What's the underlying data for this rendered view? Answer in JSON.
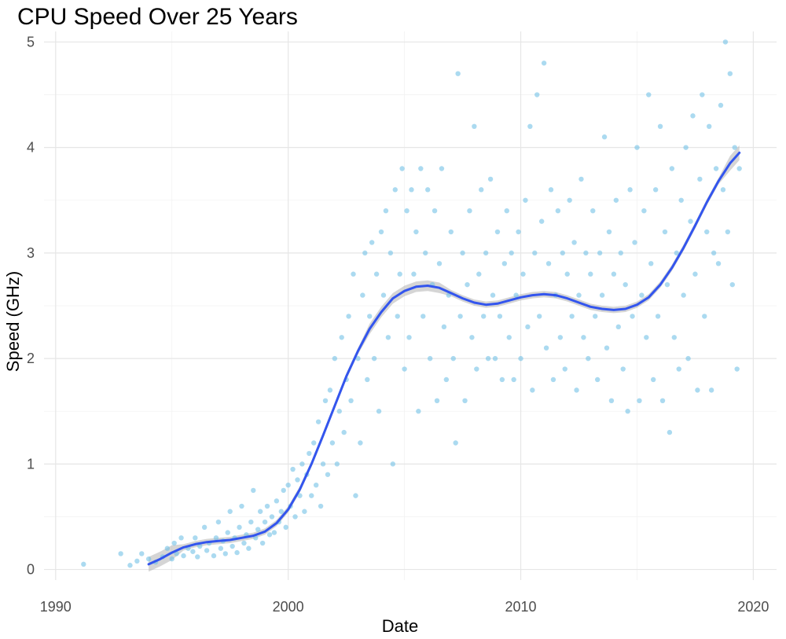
{
  "chart_data": {
    "type": "scatter",
    "title": "CPU Speed Over 25 Years",
    "xlabel": "Date",
    "ylabel": "Speed (GHz)",
    "xlim": [
      1989.5,
      2021.0
    ],
    "ylim": [
      -0.1,
      5.1
    ],
    "x_ticks": [
      1990,
      2000,
      2010,
      2020
    ],
    "x_tick_labels": [
      "1990",
      "2000",
      "2010",
      "2020"
    ],
    "y_ticks": [
      0,
      1,
      2,
      3,
      4,
      5
    ],
    "y_tick_labels": [
      "0",
      "1",
      "2",
      "3",
      "4",
      "5"
    ],
    "grid": true,
    "legend": "none",
    "colors": {
      "points": "#73c2e6",
      "trend": "#3355ee",
      "band": "#b3b3b3"
    },
    "series": [
      {
        "kind": "scatter-points",
        "points": [
          [
            1991.2,
            0.05
          ],
          [
            1992.8,
            0.15
          ],
          [
            1993.2,
            0.04
          ],
          [
            1993.5,
            0.08
          ],
          [
            1993.7,
            0.15
          ],
          [
            1994.0,
            0.1
          ],
          [
            1994.3,
            0.07
          ],
          [
            1994.6,
            0.12
          ],
          [
            1994.8,
            0.2
          ],
          [
            1995.0,
            0.1
          ],
          [
            1995.1,
            0.25
          ],
          [
            1995.2,
            0.15
          ],
          [
            1995.4,
            0.3
          ],
          [
            1995.5,
            0.13
          ],
          [
            1995.7,
            0.2
          ],
          [
            1995.9,
            0.17
          ],
          [
            1996.0,
            0.3
          ],
          [
            1996.1,
            0.12
          ],
          [
            1996.2,
            0.22
          ],
          [
            1996.4,
            0.4
          ],
          [
            1996.5,
            0.18
          ],
          [
            1996.6,
            0.25
          ],
          [
            1996.8,
            0.13
          ],
          [
            1996.9,
            0.3
          ],
          [
            1997.0,
            0.45
          ],
          [
            1997.1,
            0.2
          ],
          [
            1997.2,
            0.27
          ],
          [
            1997.3,
            0.15
          ],
          [
            1997.4,
            0.35
          ],
          [
            1997.5,
            0.55
          ],
          [
            1997.6,
            0.22
          ],
          [
            1997.7,
            0.3
          ],
          [
            1997.8,
            0.16
          ],
          [
            1997.9,
            0.4
          ],
          [
            1998.0,
            0.6
          ],
          [
            1998.1,
            0.25
          ],
          [
            1998.2,
            0.33
          ],
          [
            1998.3,
            0.2
          ],
          [
            1998.4,
            0.45
          ],
          [
            1998.5,
            0.75
          ],
          [
            1998.6,
            0.3
          ],
          [
            1998.7,
            0.38
          ],
          [
            1998.8,
            0.55
          ],
          [
            1998.9,
            0.25
          ],
          [
            1999.0,
            0.45
          ],
          [
            1999.1,
            0.6
          ],
          [
            1999.2,
            0.33
          ],
          [
            1999.3,
            0.5
          ],
          [
            1999.4,
            0.35
          ],
          [
            1999.5,
            0.65
          ],
          [
            1999.6,
            0.45
          ],
          [
            1999.7,
            0.55
          ],
          [
            1999.8,
            0.75
          ],
          [
            1999.9,
            0.4
          ],
          [
            2000.0,
            0.8
          ],
          [
            2000.1,
            0.6
          ],
          [
            2000.2,
            0.95
          ],
          [
            2000.3,
            0.5
          ],
          [
            2000.4,
            0.85
          ],
          [
            2000.5,
            0.7
          ],
          [
            2000.6,
            1.0
          ],
          [
            2000.7,
            0.55
          ],
          [
            2000.8,
            0.9
          ],
          [
            2000.9,
            1.1
          ],
          [
            2001.0,
            0.7
          ],
          [
            2001.1,
            1.2
          ],
          [
            2001.2,
            0.8
          ],
          [
            2001.3,
            1.4
          ],
          [
            2001.4,
            0.6
          ],
          [
            2001.5,
            1.0
          ],
          [
            2001.6,
            1.6
          ],
          [
            2001.7,
            0.9
          ],
          [
            2001.8,
            1.7
          ],
          [
            2001.9,
            1.2
          ],
          [
            2002.0,
            2.0
          ],
          [
            2002.1,
            1.0
          ],
          [
            2002.2,
            1.5
          ],
          [
            2002.3,
            2.2
          ],
          [
            2002.4,
            1.3
          ],
          [
            2002.5,
            1.8
          ],
          [
            2002.6,
            2.4
          ],
          [
            2002.7,
            1.6
          ],
          [
            2002.8,
            2.8
          ],
          [
            2002.9,
            0.7
          ],
          [
            2003.0,
            2.0
          ],
          [
            2003.1,
            1.2
          ],
          [
            2003.2,
            2.6
          ],
          [
            2003.3,
            3.0
          ],
          [
            2003.4,
            1.8
          ],
          [
            2003.5,
            2.4
          ],
          [
            2003.6,
            3.1
          ],
          [
            2003.7,
            2.0
          ],
          [
            2003.8,
            2.8
          ],
          [
            2003.9,
            1.5
          ],
          [
            2004.0,
            3.2
          ],
          [
            2004.1,
            2.6
          ],
          [
            2004.2,
            3.4
          ],
          [
            2004.3,
            2.2
          ],
          [
            2004.4,
            3.0
          ],
          [
            2004.5,
            1.0
          ],
          [
            2004.6,
            3.6
          ],
          [
            2004.7,
            2.4
          ],
          [
            2004.8,
            2.8
          ],
          [
            2004.9,
            3.8
          ],
          [
            2005.0,
            1.9
          ],
          [
            2005.1,
            3.4
          ],
          [
            2005.2,
            2.2
          ],
          [
            2005.3,
            3.6
          ],
          [
            2005.4,
            2.8
          ],
          [
            2005.5,
            3.2
          ],
          [
            2005.6,
            1.5
          ],
          [
            2005.7,
            3.8
          ],
          [
            2005.8,
            2.4
          ],
          [
            2005.9,
            3.0
          ],
          [
            2006.0,
            3.6
          ],
          [
            2006.1,
            2.0
          ],
          [
            2006.2,
            2.7
          ],
          [
            2006.3,
            3.4
          ],
          [
            2006.4,
            1.6
          ],
          [
            2006.5,
            2.9
          ],
          [
            2006.6,
            3.8
          ],
          [
            2006.7,
            2.3
          ],
          [
            2006.8,
            1.8
          ],
          [
            2006.9,
            2.6
          ],
          [
            2007.0,
            3.2
          ],
          [
            2007.1,
            2.0
          ],
          [
            2007.2,
            1.2
          ],
          [
            2007.3,
            4.7
          ],
          [
            2007.4,
            2.4
          ],
          [
            2007.5,
            3.0
          ],
          [
            2007.6,
            1.6
          ],
          [
            2007.7,
            2.7
          ],
          [
            2007.8,
            3.4
          ],
          [
            2007.9,
            2.2
          ],
          [
            2008.0,
            4.2
          ],
          [
            2008.1,
            1.9
          ],
          [
            2008.2,
            2.8
          ],
          [
            2008.3,
            3.6
          ],
          [
            2008.4,
            2.4
          ],
          [
            2008.5,
            3.0
          ],
          [
            2008.6,
            2.0
          ],
          [
            2008.7,
            3.7
          ],
          [
            2008.8,
            2.6
          ],
          [
            2008.9,
            2.0
          ],
          [
            2009.0,
            3.2
          ],
          [
            2009.1,
            2.4
          ],
          [
            2009.2,
            1.8
          ],
          [
            2009.3,
            2.9
          ],
          [
            2009.4,
            3.4
          ],
          [
            2009.5,
            2.2
          ],
          [
            2009.6,
            3.0
          ],
          [
            2009.7,
            1.8
          ],
          [
            2009.8,
            2.6
          ],
          [
            2009.9,
            3.2
          ],
          [
            2010.0,
            2.0
          ],
          [
            2010.1,
            2.8
          ],
          [
            2010.2,
            3.5
          ],
          [
            2010.3,
            2.3
          ],
          [
            2010.4,
            4.2
          ],
          [
            2010.5,
            1.7
          ],
          [
            2010.6,
            3.0
          ],
          [
            2010.7,
            4.5
          ],
          [
            2010.8,
            2.4
          ],
          [
            2010.9,
            3.3
          ],
          [
            2011.0,
            4.8
          ],
          [
            2011.1,
            2.1
          ],
          [
            2011.2,
            2.9
          ],
          [
            2011.3,
            3.6
          ],
          [
            2011.4,
            1.8
          ],
          [
            2011.5,
            2.6
          ],
          [
            2011.6,
            3.4
          ],
          [
            2011.7,
            2.2
          ],
          [
            2011.8,
            3.0
          ],
          [
            2011.9,
            1.9
          ],
          [
            2012.0,
            2.8
          ],
          [
            2012.1,
            3.5
          ],
          [
            2012.2,
            2.4
          ],
          [
            2012.3,
            3.1
          ],
          [
            2012.4,
            1.7
          ],
          [
            2012.5,
            2.6
          ],
          [
            2012.6,
            3.7
          ],
          [
            2012.7,
            2.2
          ],
          [
            2012.8,
            3.0
          ],
          [
            2012.9,
            2.0
          ],
          [
            2013.0,
            2.8
          ],
          [
            2013.1,
            3.4
          ],
          [
            2013.2,
            2.4
          ],
          [
            2013.3,
            1.8
          ],
          [
            2013.4,
            3.0
          ],
          [
            2013.5,
            2.6
          ],
          [
            2013.6,
            4.1
          ],
          [
            2013.7,
            2.1
          ],
          [
            2013.8,
            3.2
          ],
          [
            2013.9,
            1.6
          ],
          [
            2014.0,
            2.8
          ],
          [
            2014.1,
            3.5
          ],
          [
            2014.2,
            2.3
          ],
          [
            2014.3,
            3.0
          ],
          [
            2014.4,
            1.9
          ],
          [
            2014.5,
            2.7
          ],
          [
            2014.6,
            1.5
          ],
          [
            2014.7,
            3.6
          ],
          [
            2014.8,
            2.4
          ],
          [
            2014.9,
            3.1
          ],
          [
            2015.0,
            4.0
          ],
          [
            2015.1,
            1.6
          ],
          [
            2015.2,
            2.6
          ],
          [
            2015.3,
            3.4
          ],
          [
            2015.4,
            2.2
          ],
          [
            2015.5,
            4.5
          ],
          [
            2015.6,
            2.9
          ],
          [
            2015.7,
            1.8
          ],
          [
            2015.8,
            3.6
          ],
          [
            2015.9,
            2.4
          ],
          [
            2016.0,
            4.2
          ],
          [
            2016.1,
            1.6
          ],
          [
            2016.2,
            3.2
          ],
          [
            2016.3,
            2.7
          ],
          [
            2016.4,
            1.3
          ],
          [
            2016.5,
            3.8
          ],
          [
            2016.6,
            2.2
          ],
          [
            2016.7,
            3.0
          ],
          [
            2016.8,
            1.9
          ],
          [
            2016.9,
            3.5
          ],
          [
            2017.0,
            2.6
          ],
          [
            2017.1,
            4.0
          ],
          [
            2017.2,
            2.0
          ],
          [
            2017.3,
            3.3
          ],
          [
            2017.4,
            4.3
          ],
          [
            2017.5,
            2.8
          ],
          [
            2017.6,
            1.7
          ],
          [
            2017.7,
            3.7
          ],
          [
            2017.8,
            4.5
          ],
          [
            2017.9,
            2.4
          ],
          [
            2018.0,
            3.2
          ],
          [
            2018.1,
            4.2
          ],
          [
            2018.2,
            1.7
          ],
          [
            2018.3,
            3.0
          ],
          [
            2018.4,
            3.8
          ],
          [
            2018.5,
            2.9
          ],
          [
            2018.6,
            4.4
          ],
          [
            2018.7,
            3.6
          ],
          [
            2018.8,
            5.0
          ],
          [
            2018.9,
            3.2
          ],
          [
            2019.0,
            4.7
          ],
          [
            2019.1,
            2.7
          ],
          [
            2019.2,
            4.0
          ],
          [
            2019.3,
            1.9
          ],
          [
            2019.4,
            3.8
          ]
        ]
      },
      {
        "kind": "smooth-trend",
        "points": [
          [
            1994.0,
            0.05
          ],
          [
            1994.5,
            0.1
          ],
          [
            1995.0,
            0.16
          ],
          [
            1995.5,
            0.21
          ],
          [
            1996.0,
            0.24
          ],
          [
            1996.5,
            0.26
          ],
          [
            1997.0,
            0.27
          ],
          [
            1997.5,
            0.28
          ],
          [
            1998.0,
            0.3
          ],
          [
            1998.5,
            0.32
          ],
          [
            1999.0,
            0.36
          ],
          [
            1999.5,
            0.44
          ],
          [
            2000.0,
            0.57
          ],
          [
            2000.5,
            0.76
          ],
          [
            2001.0,
            1.0
          ],
          [
            2001.5,
            1.27
          ],
          [
            2002.0,
            1.55
          ],
          [
            2002.5,
            1.83
          ],
          [
            2003.0,
            2.07
          ],
          [
            2003.5,
            2.28
          ],
          [
            2004.0,
            2.44
          ],
          [
            2004.5,
            2.57
          ],
          [
            2005.0,
            2.64
          ],
          [
            2005.5,
            2.68
          ],
          [
            2006.0,
            2.69
          ],
          [
            2006.5,
            2.67
          ],
          [
            2007.0,
            2.62
          ],
          [
            2007.5,
            2.57
          ],
          [
            2008.0,
            2.53
          ],
          [
            2008.5,
            2.51
          ],
          [
            2009.0,
            2.52
          ],
          [
            2009.5,
            2.55
          ],
          [
            2010.0,
            2.58
          ],
          [
            2010.5,
            2.6
          ],
          [
            2011.0,
            2.61
          ],
          [
            2011.5,
            2.6
          ],
          [
            2012.0,
            2.57
          ],
          [
            2012.5,
            2.53
          ],
          [
            2013.0,
            2.49
          ],
          [
            2013.5,
            2.47
          ],
          [
            2014.0,
            2.46
          ],
          [
            2014.5,
            2.47
          ],
          [
            2015.0,
            2.51
          ],
          [
            2015.5,
            2.58
          ],
          [
            2016.0,
            2.7
          ],
          [
            2016.5,
            2.86
          ],
          [
            2017.0,
            3.05
          ],
          [
            2017.5,
            3.26
          ],
          [
            2018.0,
            3.48
          ],
          [
            2018.5,
            3.68
          ],
          [
            2019.0,
            3.85
          ],
          [
            2019.4,
            3.95
          ]
        ]
      }
    ]
  }
}
